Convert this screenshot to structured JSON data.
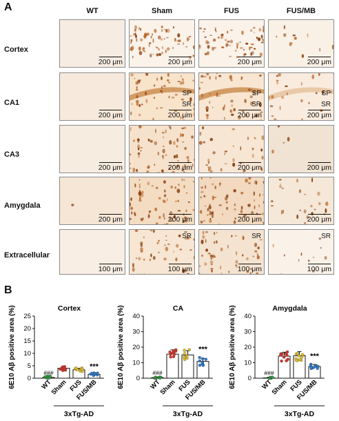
{
  "panel_a": {
    "letter": "A",
    "columns": [
      "WT",
      "Sham",
      "FUS",
      "FUS/MB"
    ],
    "rows": [
      "Cortex",
      "CA1",
      "CA3",
      "Amygdala",
      "Extracellular"
    ],
    "scale_200": "200 μm",
    "scale_100": "100 μm",
    "sp": "SP",
    "sr": "SR"
  },
  "panel_b": {
    "letter": "B",
    "group_label": "3xTg-AD",
    "y_label": "6E10 Aβ positive area (%)",
    "categories": [
      "WT",
      "Sham",
      "FUS",
      "FUS/MB"
    ],
    "wt_marker": "###",
    "sig_marker": "***"
  },
  "chart_data": [
    {
      "type": "bar",
      "title": "Cortex",
      "ylabel": "6E10 Aβ positive area (%)",
      "categories": [
        "WT",
        "Sham",
        "FUS",
        "FUS/MB"
      ],
      "values": [
        0.3,
        4.0,
        3.4,
        1.6
      ],
      "ylim": [
        0,
        25
      ],
      "yticks": [
        0,
        5,
        10,
        15,
        20,
        25
      ]
    },
    {
      "type": "bar",
      "title": "CA",
      "ylabel": "6E10 Aβ positive area (%)",
      "categories": [
        "WT",
        "Sham",
        "FUS",
        "FUS/MB"
      ],
      "values": [
        0.4,
        15.5,
        15.0,
        10.8
      ],
      "ylim": [
        0,
        40
      ],
      "yticks": [
        0,
        10,
        20,
        30,
        40
      ]
    },
    {
      "type": "bar",
      "title": "Amygdala",
      "ylabel": "6E10 Aβ positive area (%)",
      "categories": [
        "WT",
        "Sham",
        "FUS",
        "FUS/MB"
      ],
      "values": [
        0.2,
        14.2,
        14.5,
        7.5
      ],
      "ylim": [
        0,
        40
      ],
      "yticks": [
        0,
        10,
        20,
        30,
        40
      ]
    }
  ],
  "colors": {
    "bar_fill": "#ffffff",
    "wt_points": "#2e9a3c",
    "sham_points": "#d9342b",
    "fus_points": "#e2c22b",
    "fusmb_points": "#2c7bd0",
    "stain": "#9a4a12",
    "tissue": "#f6e7d2"
  }
}
